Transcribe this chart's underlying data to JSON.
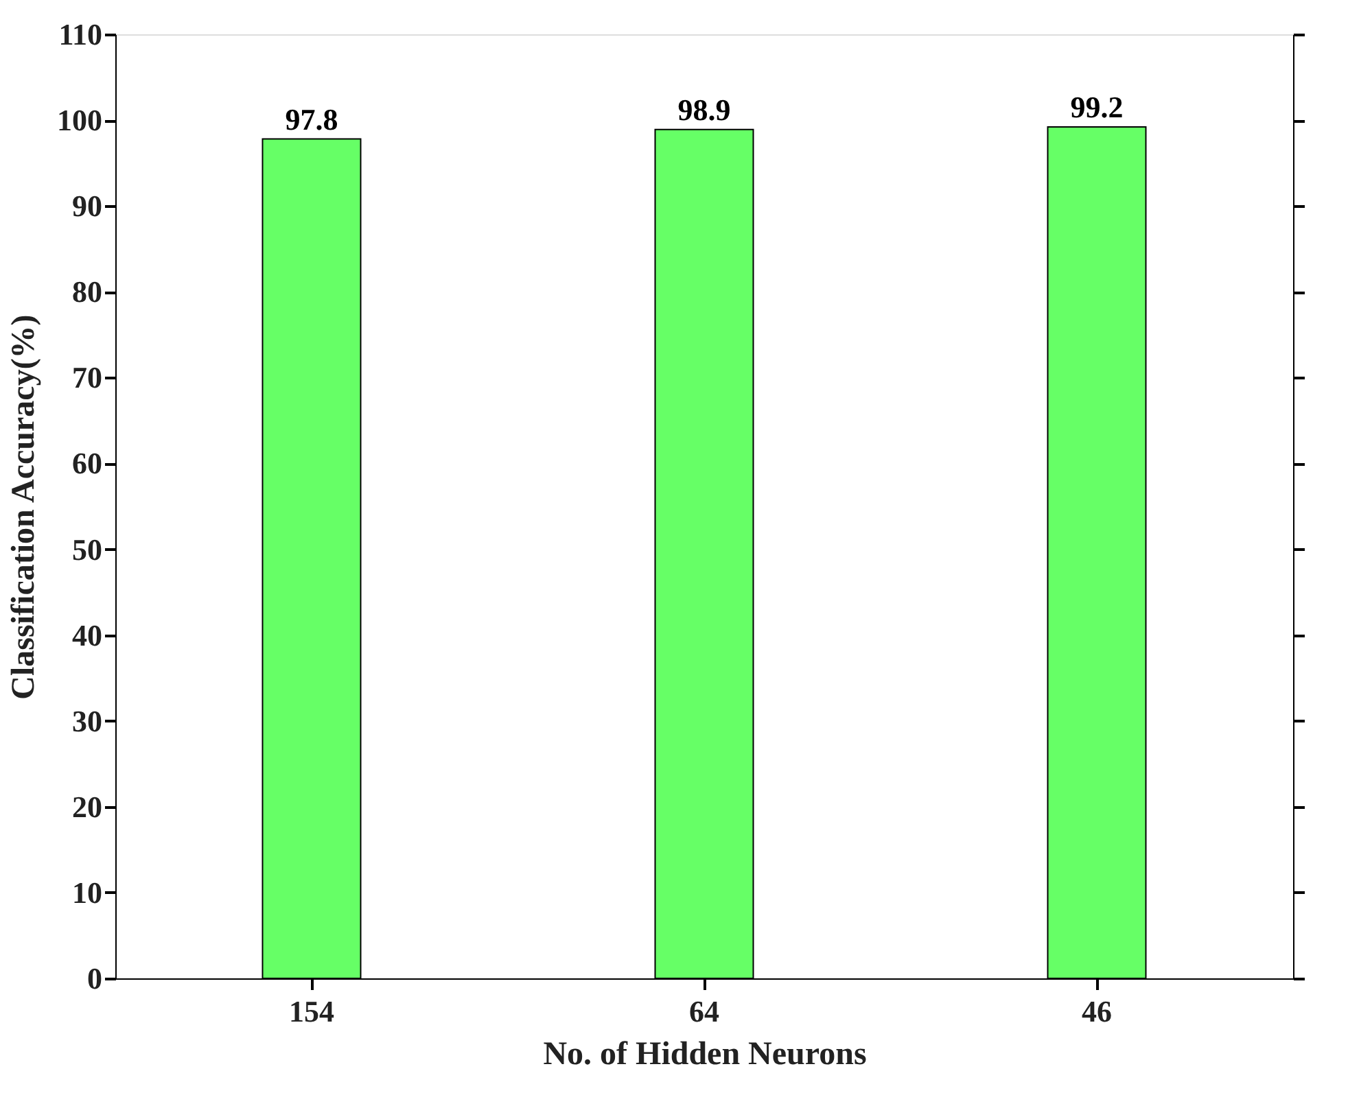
{
  "chart_data": {
    "type": "bar",
    "xlabel": "No. of Hidden Neurons",
    "ylabel": "Classification Accuracy(%)",
    "categories": [
      "154",
      "64",
      "46"
    ],
    "values": [
      97.8,
      98.9,
      99.2
    ],
    "data_labels": true,
    "color": "#66ff66",
    "ylim": [
      0,
      110
    ],
    "yticks": [
      0,
      10,
      20,
      30,
      40,
      50,
      60,
      70,
      80,
      90,
      100,
      110
    ],
    "grid": false
  }
}
